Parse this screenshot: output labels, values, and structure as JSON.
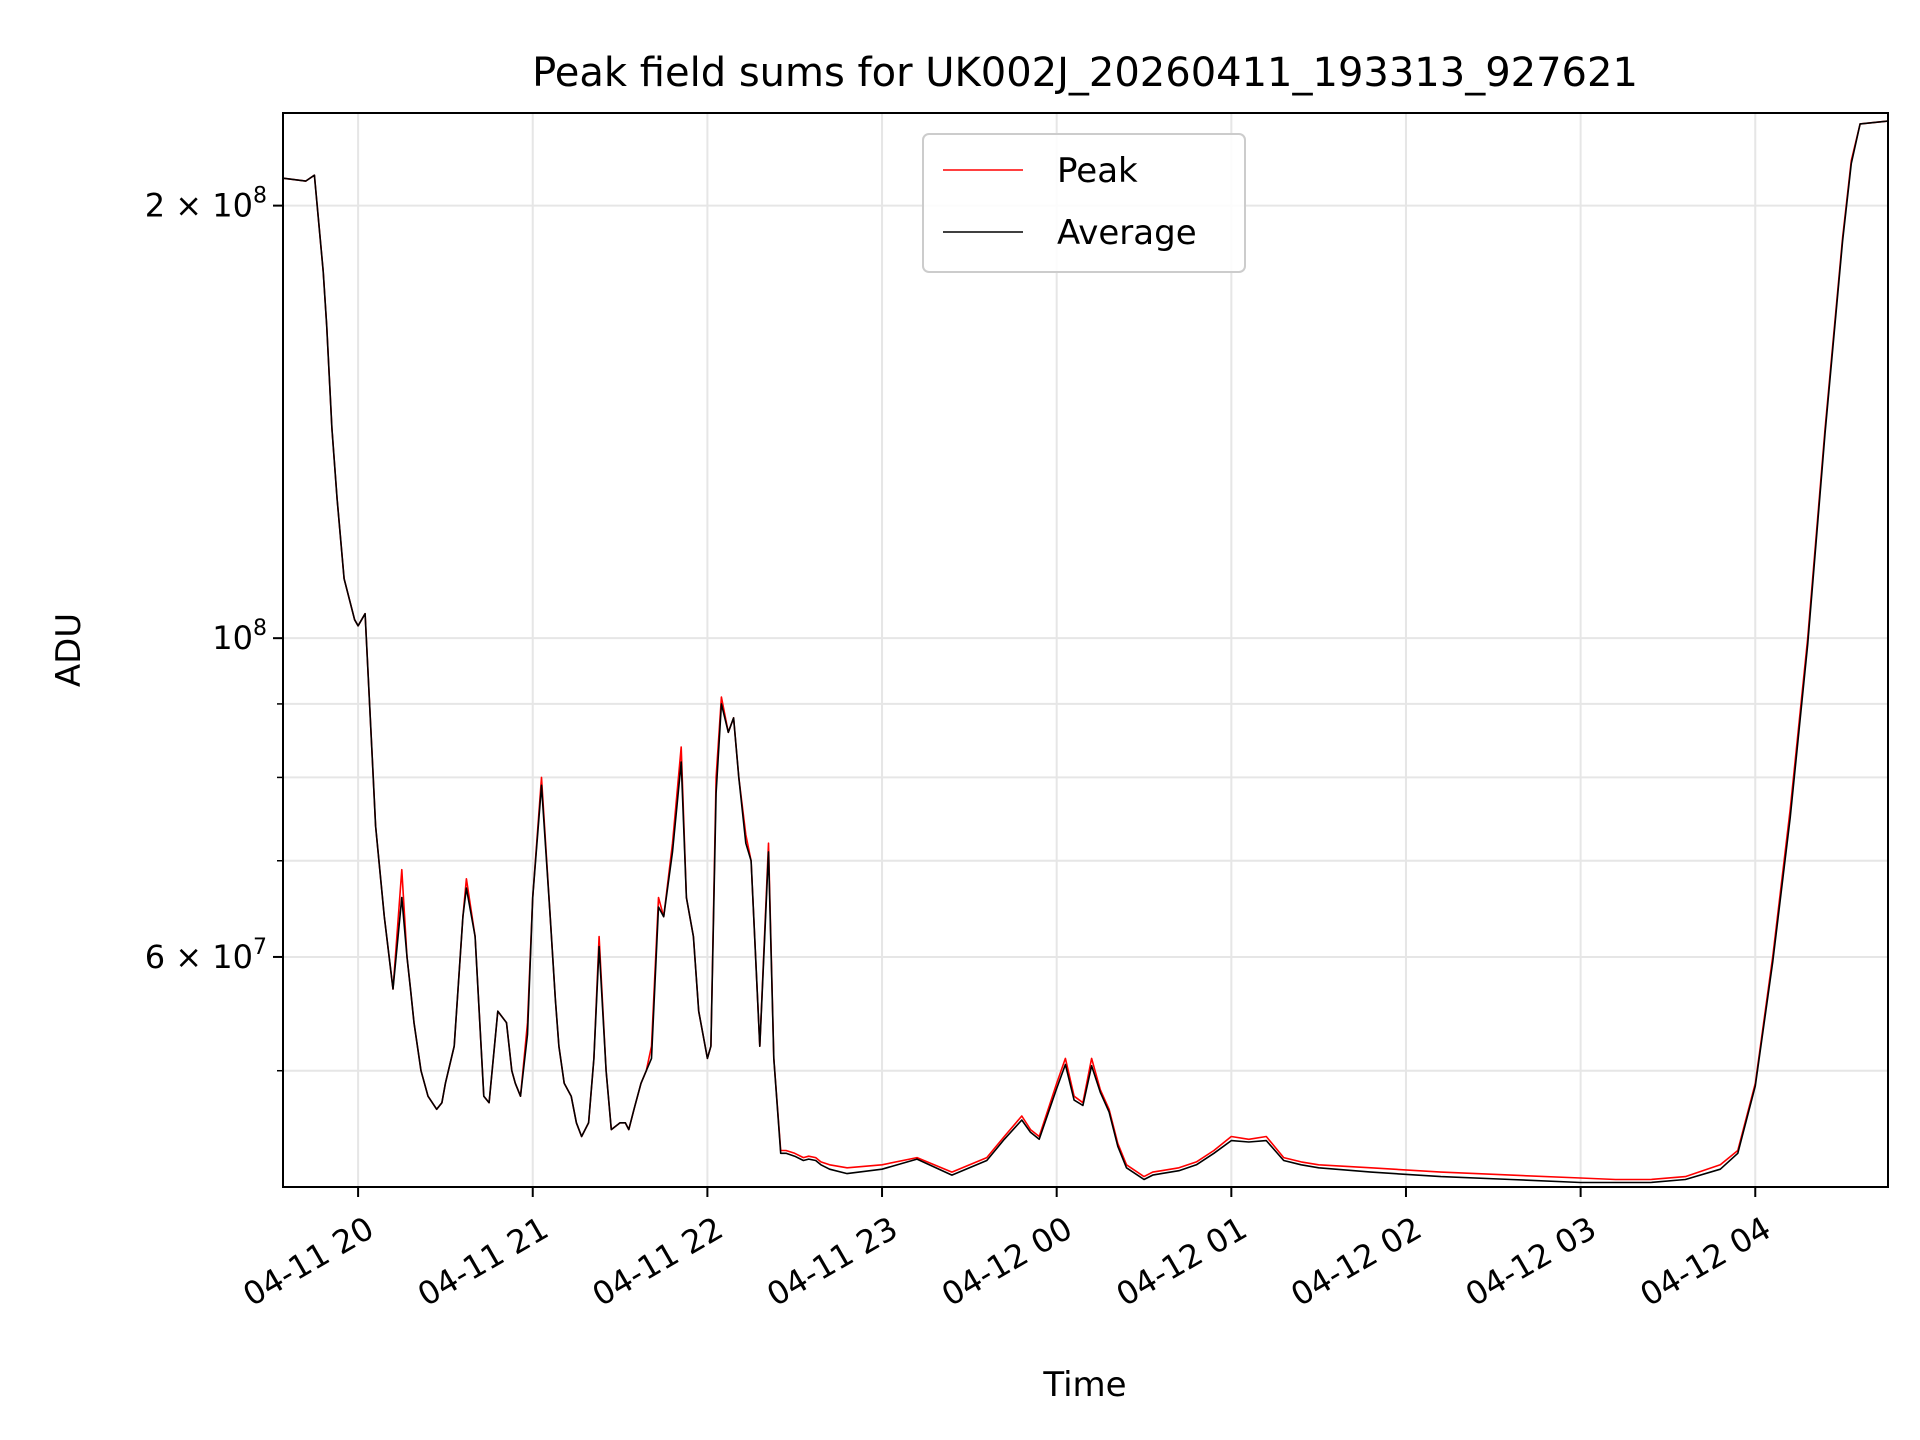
{
  "chart_data": {
    "type": "line",
    "title": "Peak field sums for UK002J_20260411_193313_927621",
    "xlabel": "Time",
    "ylabel": "ADU",
    "yscale": "log",
    "xlim": [
      -0.43,
      8.76
    ],
    "ylim": [
      41500000,
      232000000
    ],
    "grid": true,
    "legend_position": "upper-center",
    "x_units": "hours after 2026-04-11 20:00",
    "x_ticks": [
      {
        "value": 0,
        "label": "04-11 20"
      },
      {
        "value": 1,
        "label": "04-11 21"
      },
      {
        "value": 2,
        "label": "04-11 22"
      },
      {
        "value": 3,
        "label": "04-11 23"
      },
      {
        "value": 4,
        "label": "04-12 00"
      },
      {
        "value": 5,
        "label": "04-12 01"
      },
      {
        "value": 6,
        "label": "04-12 02"
      },
      {
        "value": 7,
        "label": "04-12 03"
      },
      {
        "value": 8,
        "label": "04-12 04"
      }
    ],
    "y_major_ticks": [
      {
        "value": 60000000,
        "mantissa": "6",
        "exponent": "7"
      },
      {
        "value": 100000000,
        "mantissa": "",
        "exponent": "8"
      },
      {
        "value": 200000000,
        "mantissa": "2",
        "exponent": "8"
      }
    ],
    "y_minor_ticks": [
      50000000,
      70000000,
      80000000,
      90000000
    ],
    "series": [
      {
        "name": "Peak",
        "color": "#ff0000",
        "x": [
          -0.43,
          -0.3,
          -0.25,
          -0.2,
          -0.18,
          -0.15,
          -0.12,
          -0.08,
          -0.02,
          0.0,
          0.04,
          0.08,
          0.1,
          0.15,
          0.2,
          0.25,
          0.28,
          0.3,
          0.32,
          0.36,
          0.4,
          0.45,
          0.48,
          0.5,
          0.55,
          0.6,
          0.62,
          0.67,
          0.72,
          0.75,
          0.8,
          0.85,
          0.88,
          0.9,
          0.93,
          0.97,
          1.0,
          1.05,
          1.1,
          1.13,
          1.15,
          1.18,
          1.22,
          1.25,
          1.28,
          1.32,
          1.35,
          1.38,
          1.42,
          1.45,
          1.5,
          1.53,
          1.55,
          1.58,
          1.62,
          1.65,
          1.68,
          1.72,
          1.75,
          1.8,
          1.85,
          1.88,
          1.92,
          1.95,
          2.0,
          2.02,
          2.05,
          2.08,
          2.12,
          2.15,
          2.18,
          2.22,
          2.25,
          2.3,
          2.35,
          2.38,
          2.42,
          2.45,
          2.5,
          2.55,
          2.58,
          2.62,
          2.65,
          2.7,
          2.8,
          3.0,
          3.2,
          3.4,
          3.6,
          3.7,
          3.8,
          3.85,
          3.9,
          4.0,
          4.05,
          4.1,
          4.15,
          4.2,
          4.25,
          4.3,
          4.35,
          4.4,
          4.5,
          4.55,
          4.6,
          4.7,
          4.8,
          4.9,
          5.0,
          5.1,
          5.2,
          5.3,
          5.4,
          5.5,
          5.8,
          6.2,
          6.6,
          7.0,
          7.2,
          7.4,
          7.6,
          7.8,
          7.9,
          8.0,
          8.1,
          8.2,
          8.3,
          8.4,
          8.5,
          8.55,
          8.6,
          8.76
        ],
        "y": [
          209000000,
          208000000,
          210000000,
          180000000,
          165000000,
          140000000,
          125000000,
          110000000,
          103000000,
          102000000,
          104000000,
          83000000,
          74000000,
          64000000,
          57000000,
          69000000,
          60000000,
          57000000,
          54000000,
          50000000,
          48000000,
          47000000,
          47500000,
          49000000,
          52000000,
          64000000,
          68000000,
          62000000,
          48000000,
          47500000,
          55000000,
          54000000,
          50000000,
          49000000,
          48000000,
          54000000,
          66000000,
          80000000,
          64000000,
          56000000,
          52000000,
          49000000,
          48000000,
          46000000,
          45000000,
          46000000,
          51000000,
          62000000,
          50000000,
          45500000,
          46000000,
          46000000,
          45500000,
          47000000,
          49000000,
          50000000,
          52000000,
          66000000,
          64000000,
          72000000,
          84000000,
          66000000,
          62000000,
          55000000,
          51000000,
          52000000,
          80000000,
          91000000,
          86000000,
          88000000,
          80000000,
          73000000,
          70000000,
          52000000,
          72000000,
          51000000,
          44000000,
          44000000,
          43800000,
          43500000,
          43600000,
          43500000,
          43200000,
          43000000,
          42800000,
          43000000,
          43500000,
          42500000,
          43500000,
          45000000,
          46500000,
          45500000,
          45000000,
          49000000,
          51000000,
          48000000,
          47500000,
          51000000,
          48500000,
          47000000,
          44500000,
          43000000,
          42200000,
          42500000,
          42600000,
          42800000,
          43200000,
          44000000,
          45000000,
          44800000,
          45000000,
          43500000,
          43200000,
          43000000,
          42800000,
          42500000,
          42300000,
          42100000,
          42000000,
          42000000,
          42200000,
          43000000,
          44000000,
          49000000,
          60000000,
          76000000,
          100000000,
          140000000,
          190000000,
          215000000,
          228000000,
          229000000
        ]
      },
      {
        "name": "Average",
        "color": "#000000",
        "x": [
          -0.43,
          -0.3,
          -0.25,
          -0.2,
          -0.18,
          -0.15,
          -0.12,
          -0.08,
          -0.02,
          0.0,
          0.04,
          0.08,
          0.1,
          0.15,
          0.2,
          0.25,
          0.28,
          0.3,
          0.32,
          0.36,
          0.4,
          0.45,
          0.48,
          0.5,
          0.55,
          0.6,
          0.62,
          0.67,
          0.72,
          0.75,
          0.8,
          0.85,
          0.88,
          0.9,
          0.93,
          0.97,
          1.0,
          1.05,
          1.1,
          1.13,
          1.15,
          1.18,
          1.22,
          1.25,
          1.28,
          1.32,
          1.35,
          1.38,
          1.42,
          1.45,
          1.5,
          1.53,
          1.55,
          1.58,
          1.62,
          1.65,
          1.68,
          1.72,
          1.75,
          1.8,
          1.85,
          1.88,
          1.92,
          1.95,
          2.0,
          2.02,
          2.05,
          2.08,
          2.12,
          2.15,
          2.18,
          2.22,
          2.25,
          2.3,
          2.35,
          2.38,
          2.42,
          2.45,
          2.5,
          2.55,
          2.58,
          2.62,
          2.65,
          2.7,
          2.8,
          3.0,
          3.2,
          3.4,
          3.6,
          3.7,
          3.8,
          3.85,
          3.9,
          4.0,
          4.05,
          4.1,
          4.15,
          4.2,
          4.25,
          4.3,
          4.35,
          4.4,
          4.5,
          4.55,
          4.6,
          4.7,
          4.8,
          4.9,
          5.0,
          5.1,
          5.2,
          5.3,
          5.4,
          5.5,
          5.8,
          6.2,
          6.6,
          7.0,
          7.2,
          7.4,
          7.6,
          7.8,
          7.9,
          8.0,
          8.1,
          8.2,
          8.3,
          8.4,
          8.5,
          8.55,
          8.6,
          8.76
        ],
        "y": [
          209000000,
          208000000,
          210000000,
          180000000,
          165000000,
          140000000,
          125000000,
          110000000,
          103000000,
          102000000,
          104000000,
          83000000,
          74000000,
          64000000,
          57000000,
          66000000,
          60000000,
          57000000,
          54000000,
          50000000,
          48000000,
          47000000,
          47500000,
          49000000,
          52000000,
          64000000,
          67000000,
          62000000,
          48000000,
          47500000,
          55000000,
          54000000,
          50000000,
          49000000,
          48000000,
          53000000,
          66000000,
          79000000,
          64000000,
          56000000,
          52000000,
          49000000,
          48000000,
          46000000,
          45000000,
          46000000,
          51000000,
          61000000,
          50000000,
          45500000,
          46000000,
          46000000,
          45500000,
          47000000,
          49000000,
          50000000,
          51000000,
          65000000,
          64000000,
          71000000,
          82000000,
          66000000,
          62000000,
          55000000,
          51000000,
          52000000,
          78000000,
          90000000,
          86000000,
          88000000,
          80000000,
          72000000,
          70000000,
          52000000,
          71000000,
          51000000,
          43800000,
          43800000,
          43600000,
          43300000,
          43400000,
          43300000,
          43000000,
          42700000,
          42400000,
          42700000,
          43400000,
          42300000,
          43300000,
          44800000,
          46200000,
          45300000,
          44800000,
          48600000,
          50500000,
          47700000,
          47300000,
          50400000,
          48300000,
          46800000,
          44300000,
          42800000,
          42000000,
          42300000,
          42400000,
          42600000,
          43000000,
          43800000,
          44700000,
          44600000,
          44700000,
          43300000,
          43000000,
          42800000,
          42500000,
          42200000,
          42000000,
          41800000,
          41800000,
          41800000,
          42000000,
          42700000,
          43800000,
          48800000,
          59500000,
          75000000,
          99000000,
          139000000,
          189000000,
          214000000,
          228000000,
          229000000
        ]
      }
    ]
  }
}
